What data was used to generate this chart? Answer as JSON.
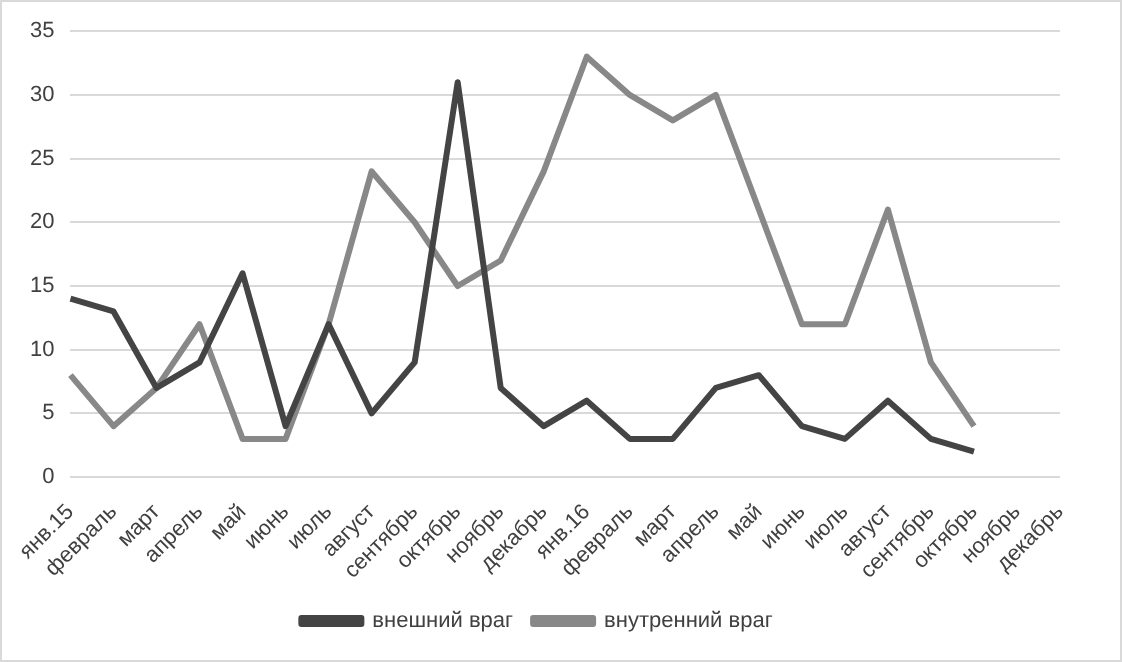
{
  "chart_data": {
    "type": "line",
    "categories": [
      "янв.15",
      "февраль",
      "март",
      "апрель",
      "май",
      "июнь",
      "июль",
      "август",
      "сентябрь",
      "октябрь",
      "ноябрь",
      "декабрь",
      "янв.16",
      "февраль",
      "март",
      "апрель",
      "май",
      "июнь",
      "июль",
      "август",
      "сентябрь",
      "октябрь",
      "ноябрь",
      "декабрь"
    ],
    "series": [
      {
        "name": "внешний враг",
        "color": "#444444",
        "values": [
          14,
          13,
          7,
          9,
          16,
          4,
          12,
          5,
          9,
          31,
          7,
          4,
          6,
          3,
          3,
          7,
          8,
          4,
          3,
          6,
          3,
          2,
          null,
          null
        ]
      },
      {
        "name": "внутренний враг",
        "color": "#888888",
        "values": [
          8,
          4,
          7,
          12,
          3,
          3,
          12,
          24,
          20,
          15,
          17,
          24,
          33,
          30,
          28,
          30,
          21,
          12,
          12,
          21,
          9,
          4,
          null,
          null
        ]
      }
    ],
    "ylim": [
      0,
      35
    ],
    "yticks": [
      0,
      5,
      10,
      15,
      20,
      25,
      30,
      35
    ],
    "grid": "y",
    "legend": "bottom",
    "marker": "none",
    "line_style": "solid"
  }
}
